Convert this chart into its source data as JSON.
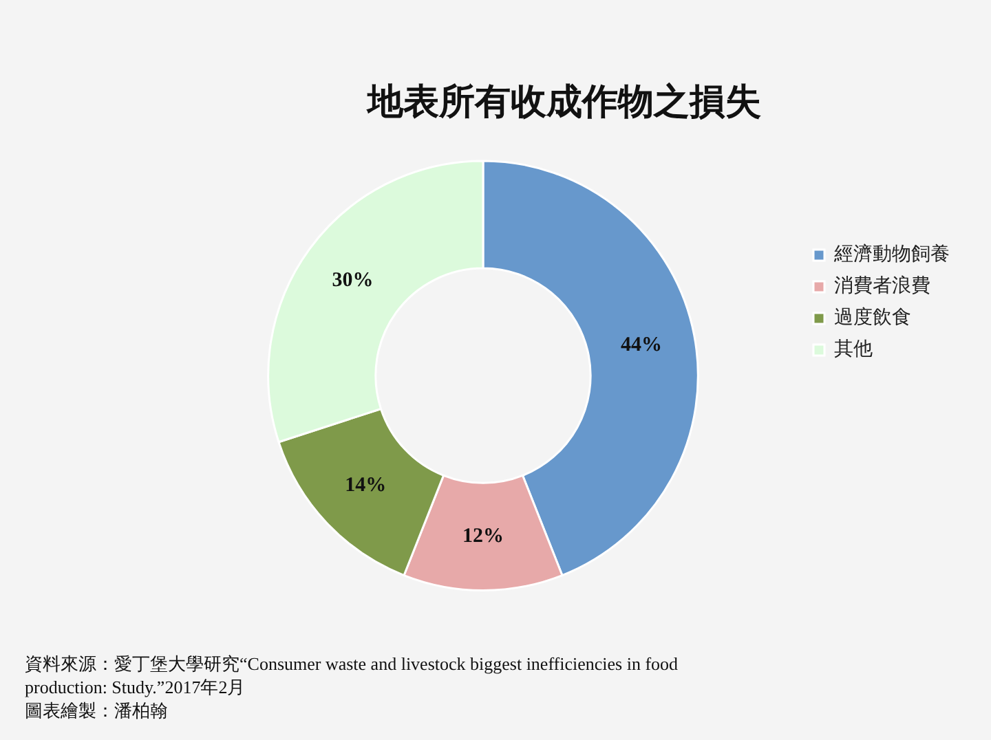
{
  "chart_data": {
    "type": "donut",
    "title": "地表所有收成作物之損失",
    "categories": [
      "經濟動物飼養",
      "消費者浪費",
      "過度飲食",
      "其他"
    ],
    "values": [
      44,
      12,
      14,
      30
    ],
    "colors": [
      "#6798cc",
      "#e7a9a9",
      "#7f9a4a",
      "#dcfadc"
    ],
    "value_labels": [
      "44%",
      "12%",
      "14%",
      "30%"
    ],
    "legend": "right",
    "annotations": [
      "資料來源：愛丁堡大學研究“Consumer waste and livestock biggest inefficiencies in food production: Study.”2017年2月",
      "圖表繪製：潘柏翰"
    ]
  }
}
